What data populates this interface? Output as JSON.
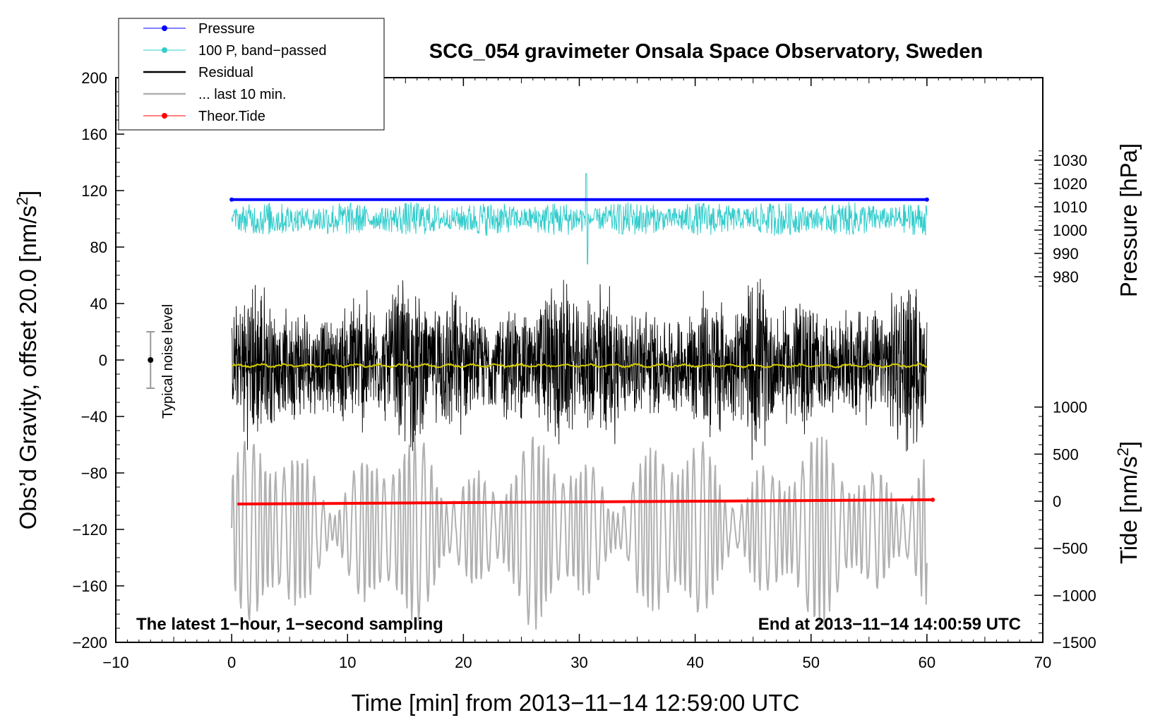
{
  "chart_data": {
    "type": "line",
    "title": "SCG_054 gravimeter Onsala Space Observatory, Sweden",
    "xlabel": "Time [min] from 2013−11−14 12:59:00 UTC",
    "ylabel_left": "Obs’d Gravity, offset 20.0 [nm/s",
    "ylabel_left_sup": "2",
    "ylabel_left_tail": "]",
    "ylabel_right_pressure": "Pressure [hPa]",
    "ylabel_right_tide": "Tide [nm/s",
    "ylabel_right_tide_sup": "2",
    "ylabel_right_tide_tail": "]",
    "xlim": [
      -10,
      70
    ],
    "ylim": [
      -200,
      200
    ],
    "x_ticks": [
      "−10",
      "0",
      "10",
      "20",
      "30",
      "40",
      "50",
      "60",
      "70"
    ],
    "x_tick_values": [
      -10,
      0,
      10,
      20,
      30,
      40,
      50,
      60,
      70
    ],
    "y_ticks": [
      "200",
      "160",
      "120",
      "80",
      "40",
      "0",
      "−40",
      "−80",
      "−120",
      "−160",
      "−200"
    ],
    "y_tick_values": [
      200,
      160,
      120,
      80,
      40,
      0,
      -40,
      -80,
      -120,
      -160,
      -200
    ],
    "pressure_axis": {
      "ticks": [
        "1030",
        "1020",
        "1010",
        "1000",
        "990",
        "980"
      ],
      "tick_values": [
        1030,
        1020,
        1010,
        1000,
        990,
        980
      ],
      "map": {
        "ref_value": 1000,
        "ref_gravity": 92,
        "nm_per_hpa": 1.65
      }
    },
    "tide_axis": {
      "ticks": [
        "1000",
        "500",
        "0",
        "−500",
        "−1000",
        "−1500"
      ],
      "tick_values": [
        1000,
        500,
        0,
        -500,
        -1000,
        -1500
      ],
      "map": {
        "ref_value": 0,
        "ref_gravity": -100,
        "nm_per_unit": 0.066667
      }
    },
    "legend": {
      "placement": "top-left",
      "items": [
        {
          "label": "Pressure",
          "color": "#0000ff",
          "marker": true
        },
        {
          "label": "100 P, band−passed",
          "color": "#33cccc",
          "marker": true
        },
        {
          "label": "Residual",
          "color": "#000000",
          "marker": false
        },
        {
          "label": "... last 10 min.",
          "color": "#b0b0b0",
          "marker": false
        },
        {
          "label": "Theor.Tide",
          "color": "#ff0000",
          "marker": true
        }
      ]
    },
    "series": [
      {
        "name": "Pressure",
        "color": "#0000ff",
        "x_range": [
          0,
          60
        ],
        "level_hpa": 1013.1
      },
      {
        "name": "100 P, band-passed",
        "color": "#33cccc",
        "x_range": [
          0,
          60
        ],
        "center": 100,
        "amplitude": 12,
        "spike_at_min": 30.6,
        "spike_peak": 132,
        "spike_trough": 68
      },
      {
        "name": "Residual",
        "color": "#000000",
        "x_range": [
          0,
          60
        ],
        "center": -3,
        "amplitude_range": [
          35,
          70
        ]
      },
      {
        "name": "Running mean",
        "color": "#d4cc00",
        "x_range": [
          0,
          60
        ],
        "center": -4
      },
      {
        "name": "... last 10 min.",
        "color": "#b0b0b0",
        "x_range": [
          0,
          60
        ],
        "center": -120,
        "amplitude_range": [
          10,
          70
        ]
      },
      {
        "name": "Theor.Tide",
        "color": "#ff0000",
        "x": [
          0.5,
          60.5
        ],
        "y": [
          -102,
          -99
        ]
      }
    ],
    "annotations": {
      "noise_label": "Typical noise level",
      "noise_bar": {
        "x": -7,
        "y_low": -20,
        "y_high": 20
      },
      "footer_left": "The latest 1−hour, 1−second sampling",
      "footer_right": "End at 2013−11−14 14:00:59 UTC"
    }
  }
}
